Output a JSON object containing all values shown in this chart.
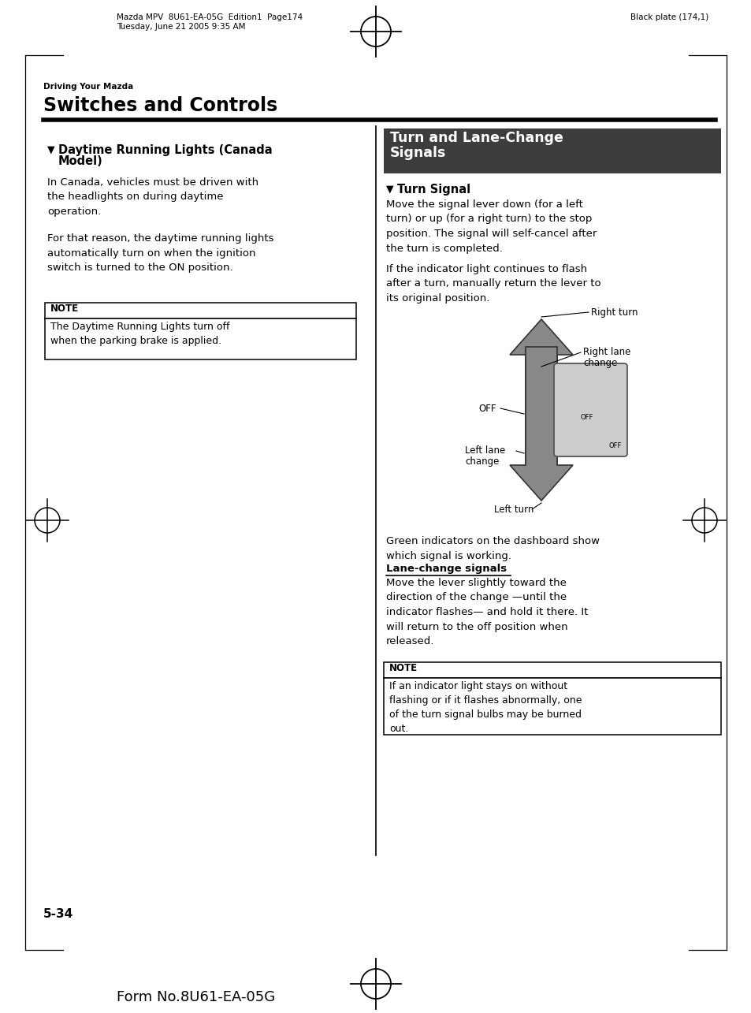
{
  "bg_color": "#ffffff",
  "header_left_line1": "Mazda MPV  8U61-EA-05G  Edition1  Page174",
  "header_left_line2": "Tuesday, June 21 2005 9:35 AM",
  "header_right": "Black plate (174,1)",
  "section_label": "Driving Your Mazda",
  "section_title": "Switches and Controls",
  "left_heading_bullet": "▼",
  "left_heading_text1": "Daytime Running Lights (Canada",
  "left_heading_text2": "Model)",
  "left_p1": "In Canada, vehicles must be driven with\nthe headlights on during daytime\noperation.",
  "left_p2": "For that reason, the daytime running lights\nautomatically turn on when the ignition\nswitch is turned to the ON position.",
  "note_left_title": "NOTE",
  "note_left_body": "The Daytime Running Lights turn off\nwhen the parking brake is applied.",
  "right_banner_line1": "Turn and Lane-Change",
  "right_banner_line2": "Signals",
  "right_heading_bullet": "▼",
  "right_heading_text": "Turn Signal",
  "right_p1": "Move the signal lever down (for a left\nturn) or up (for a right turn) to the stop\nposition. The signal will self-cancel after\nthe turn is completed.",
  "right_p2": "If the indicator light continues to flash\nafter a turn, manually return the lever to\nits original position.",
  "diag_label_right_turn": "Right turn",
  "diag_label_right_lane_1": "Right lane",
  "diag_label_right_lane_2": "change",
  "diag_label_off": "OFF",
  "diag_label_left_lane_1": "Left lane",
  "diag_label_left_lane_2": "change",
  "diag_label_left_turn": "Left turn",
  "right_p3": "Green indicators on the dashboard show\nwhich signal is working.",
  "lane_change_heading": "Lane-change signals",
  "right_p4": "Move the lever slightly toward the\ndirection of the change —until the\nindicator flashes— and hold it there. It\nwill return to the off position when\nreleased.",
  "note_right_title": "NOTE",
  "note_right_body": "If an indicator light stays on without\nflashing or if it flashes abnormally, one\nof the turn signal bulbs may be burned\nout.",
  "page_number": "5-34",
  "form_number": "Form No.8U61-EA-05G",
  "banner_color": "#3d3d3d",
  "banner_text_color": "#ffffff"
}
